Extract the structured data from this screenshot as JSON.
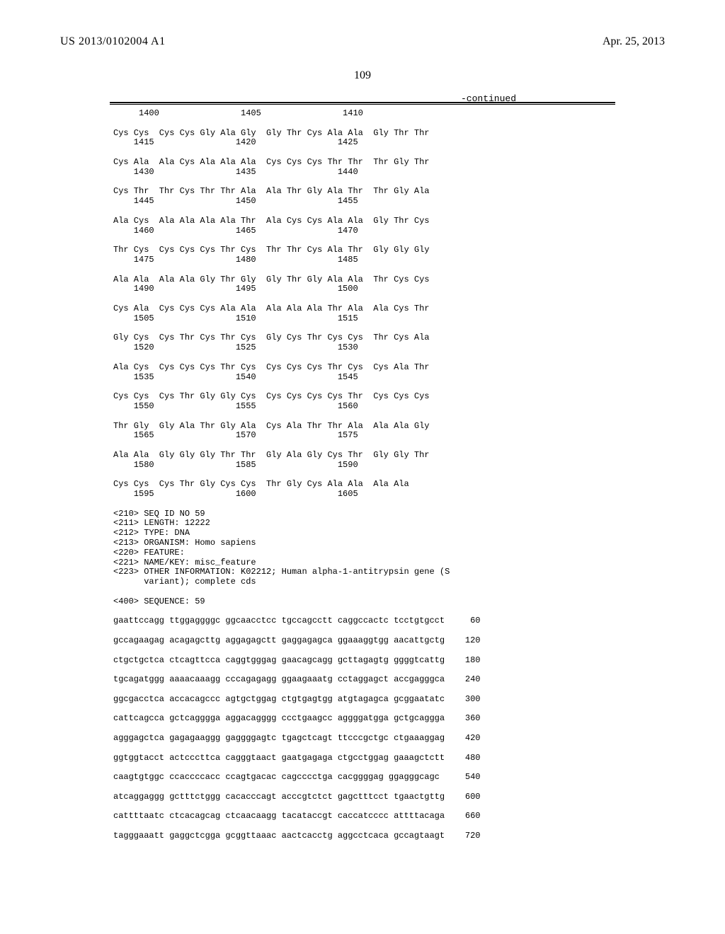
{
  "header": {
    "pub_number": "US 2013/0102004 A1",
    "pub_date": "Apr. 25, 2013"
  },
  "page_number": "109",
  "continued_label": "-continued",
  "protein_rows": [
    {
      "pos": "     1400                1405                1410",
      "aa": ""
    },
    {
      "pos": "    1415                1420                1425",
      "aa": "Cys Cys  Cys Cys Gly Ala Gly  Gly Thr Cys Ala Ala  Gly Thr Thr"
    },
    {
      "pos": "    1430                1435                1440",
      "aa": "Cys Ala  Ala Cys Ala Ala Ala  Cys Cys Cys Thr Thr  Thr Gly Thr"
    },
    {
      "pos": "    1445                1450                1455",
      "aa": "Cys Thr  Thr Cys Thr Thr Ala  Ala Thr Gly Ala Thr  Thr Gly Ala"
    },
    {
      "pos": "    1460                1465                1470",
      "aa": "Ala Cys  Ala Ala Ala Ala Thr  Ala Cys Cys Ala Ala  Gly Thr Cys"
    },
    {
      "pos": "    1475                1480                1485",
      "aa": "Thr Cys  Cys Cys Cys Thr Cys  Thr Thr Cys Ala Thr  Gly Gly Gly"
    },
    {
      "pos": "    1490                1495                1500",
      "aa": "Ala Ala  Ala Ala Gly Thr Gly  Gly Thr Gly Ala Ala  Thr Cys Cys"
    },
    {
      "pos": "    1505                1510                1515",
      "aa": "Cys Ala  Cys Cys Cys Ala Ala  Ala Ala Ala Thr Ala  Ala Cys Thr"
    },
    {
      "pos": "    1520                1525                1530",
      "aa": "Gly Cys  Cys Thr Cys Thr Cys  Gly Cys Thr Cys Cys  Thr Cys Ala"
    },
    {
      "pos": "    1535                1540                1545",
      "aa": "Ala Cys  Cys Cys Cys Thr Cys  Cys Cys Cys Thr Cys  Cys Ala Thr"
    },
    {
      "pos": "    1550                1555                1560",
      "aa": "Cys Cys  Cys Thr Gly Gly Cys  Cys Cys Cys Cys Thr  Cys Cys Cys"
    },
    {
      "pos": "    1565                1570                1575",
      "aa": "Thr Gly  Gly Ala Thr Gly Ala  Cys Ala Thr Thr Ala  Ala Ala Gly"
    },
    {
      "pos": "    1580                1585                1590",
      "aa": "Ala Ala  Gly Gly Gly Thr Thr  Gly Ala Gly Cys Thr  Gly Gly Thr"
    },
    {
      "pos": "    1595                1600                1605",
      "aa": "Cys Cys  Cys Thr Gly Cys Cys  Thr Gly Cys Ala Ala  Ala Ala"
    }
  ],
  "seq_header": {
    "l1": "<210> SEQ ID NO 59",
    "l2": "<211> LENGTH: 12222",
    "l3": "<212> TYPE: DNA",
    "l4": "<213> ORGANISM: Homo sapiens",
    "l5": "<220> FEATURE:",
    "l6": "<221> NAME/KEY: misc_feature",
    "l7": "<223> OTHER INFORMATION: K02212; Human alpha-1-antitrypsin gene (S",
    "l8": "      variant); complete cds",
    "l9": "<400> SEQUENCE: 59"
  },
  "dna_rows": [
    {
      "seq": "gaattccagg ttggaggggc ggcaacctcc tgccagcctt caggccactc tcctgtgcct",
      "n": "60"
    },
    {
      "seq": "gccagaagag acagagcttg aggagagctt gaggagagca ggaaaggtgg aacattgctg",
      "n": "120"
    },
    {
      "seq": "ctgctgctca ctcagttcca caggtgggag gaacagcagg gcttagagtg ggggtcattg",
      "n": "180"
    },
    {
      "seq": "tgcagatggg aaaacaaagg cccagagagg ggaagaaatg cctaggagct accgagggca",
      "n": "240"
    },
    {
      "seq": "ggcgacctca accacagccc agtgctggag ctgtgagtgg atgtagagca gcggaatatc",
      "n": "300"
    },
    {
      "seq": "cattcagcca gctcaggggа aggacagggg ccctgaagcc aggggatgga gctgcaggga",
      "n": "360"
    },
    {
      "seq": "agggagctca gagagаaggg gaggggagtc tgagctcagt ttcccgctgc ctgaaaggag",
      "n": "420"
    },
    {
      "seq": "ggtggtacct actcccttca cagggtaact gaatgagaga ctgcctggag gaaagctctt",
      "n": "480"
    },
    {
      "seq": "caagtgtggc ccaccccacc ccagtgacac cagcccctga cacggggag ggagggcagc",
      "n": "540"
    },
    {
      "seq": "atcaggaggg gctttctggg cacacccagt acccgtctct gagctttcct tgaactgttg",
      "n": "600"
    },
    {
      "seq": "cattttaatc ctcacagcag ctcaacaagg tacataccgt caccatcccc attttacaga",
      "n": "660"
    },
    {
      "seq": "tagggaaatt gaggctcgga gcggttaaac aactcacctg aggcctcaca gccagtaagt",
      "n": "720"
    }
  ],
  "colors": {
    "text": "#000000",
    "background": "#ffffff",
    "rule": "#000000"
  },
  "typography": {
    "header_font": "Times New Roman",
    "body_font": "Courier New",
    "header_size_pt": 12,
    "body_size_pt": 9
  }
}
